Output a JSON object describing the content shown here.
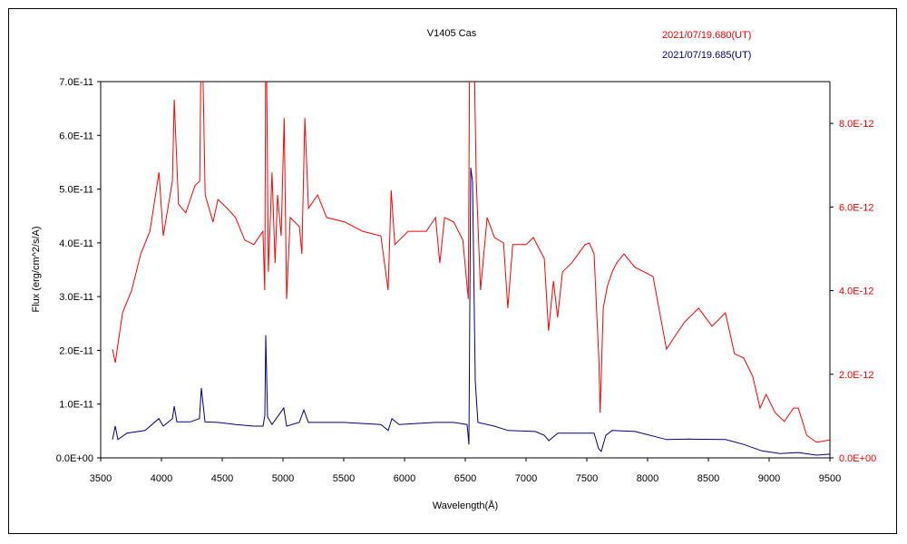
{
  "chart_data": {
    "type": "line",
    "title": "V1405 Cas",
    "xlabel": "Wavelength(Å)",
    "ylabel": "Flux (erg/cm^2/s/A)",
    "xlim": [
      3500,
      9500
    ],
    "ylim_left": [
      0,
      7e-11
    ],
    "ylim_right": [
      0,
      9e-12
    ],
    "x_ticks": [
      "3500",
      "4000",
      "4500",
      "5000",
      "5500",
      "6000",
      "6500",
      "7000",
      "7500",
      "8000",
      "8500",
      "9000",
      "9500"
    ],
    "x_tick_values": [
      3500,
      4000,
      4500,
      5000,
      5500,
      6000,
      6500,
      7000,
      7500,
      8000,
      8500,
      9000,
      9500
    ],
    "y_left_ticks": [
      "0.0E+00",
      "1.0E-11",
      "2.0E-11",
      "3.0E-11",
      "4.0E-11",
      "5.0E-11",
      "6.0E-11",
      "7.0E-11"
    ],
    "y_left_tick_values": [
      0,
      1,
      2,
      3,
      4,
      5,
      6,
      7
    ],
    "y_right_ticks": [
      "0.0E+00",
      "2.0E-12",
      "4.0E-12",
      "6.0E-12",
      "8.0E-12"
    ],
    "y_right_tick_values": [
      0,
      2,
      4,
      6,
      8
    ],
    "grid": false,
    "legend_position": "top-right",
    "series": [
      {
        "name": "2021/07/19.680(UT)",
        "color": "#ff0000",
        "axis": "right",
        "unit": "1E-12",
        "x": [
          3597,
          3620,
          3680,
          3755,
          3830,
          3905,
          3980,
          4015,
          4090,
          4105,
          4140,
          4200,
          4275,
          4315,
          4330,
          4360,
          4425,
          4465,
          4540,
          4610,
          4685,
          4760,
          4835,
          4850,
          4860,
          4880,
          4910,
          4935,
          4955,
          4985,
          5010,
          5030,
          5060,
          5135,
          5155,
          5180,
          5210,
          5285,
          5360,
          5510,
          5655,
          5805,
          5865,
          5890,
          5920,
          6030,
          6180,
          6255,
          6290,
          6330,
          6405,
          6480,
          6525,
          6540,
          6560,
          6590,
          6625,
          6680,
          6740,
          6815,
          6850,
          6890,
          7000,
          7060,
          7150,
          7185,
          7225,
          7260,
          7300,
          7375,
          7485,
          7520,
          7560,
          7600,
          7610,
          7635,
          7670,
          7710,
          7745,
          7805,
          7895,
          8045,
          8155,
          8230,
          8305,
          8420,
          8530,
          8640,
          8715,
          8790,
          8865,
          8925,
          8975,
          9050,
          9125,
          9200,
          9240,
          9310,
          9390,
          9500
        ],
        "y": [
          2.6,
          2.28,
          3.47,
          4.01,
          4.88,
          5.42,
          6.83,
          5.31,
          6.62,
          8.57,
          6.07,
          5.86,
          6.51,
          6.62,
          11,
          6.29,
          5.64,
          6.18,
          5.97,
          5.75,
          5.21,
          5.1,
          5.42,
          4.01,
          11,
          4.45,
          6.83,
          4.66,
          6.29,
          5.31,
          8.13,
          3.8,
          5.75,
          5.53,
          4.88,
          8.13,
          5.97,
          6.29,
          5.75,
          5.64,
          5.42,
          5.31,
          4.01,
          6.4,
          5.1,
          5.42,
          5.42,
          5.75,
          4.66,
          5.75,
          5.64,
          5.21,
          3.8,
          12,
          12,
          6.62,
          4.01,
          5.75,
          5.27,
          5.14,
          3.58,
          5.1,
          5.1,
          5.27,
          4.77,
          3.04,
          4.23,
          3.36,
          4.45,
          4.66,
          5.1,
          5.14,
          4.88,
          2.28,
          1.08,
          3.58,
          4.12,
          4.45,
          4.66,
          4.88,
          4.56,
          4.34,
          2.6,
          2.93,
          3.25,
          3.58,
          3.15,
          3.47,
          2.49,
          2.39,
          1.95,
          1.19,
          1.52,
          1.08,
          0.87,
          1.19,
          1.19,
          0.54,
          0.37,
          0.43
        ]
      },
      {
        "name": "2021/07/19.685(UT)",
        "color": "#000080",
        "axis": "left",
        "unit": "1E-11",
        "x": [
          3597,
          3620,
          3642,
          3716,
          3866,
          3978,
          4015,
          4090,
          4105,
          4127,
          4239,
          4313,
          4328,
          4358,
          4463,
          4612,
          4761,
          4836,
          4851,
          4858,
          4873,
          4910,
          5007,
          5030,
          5134,
          5172,
          5209,
          5507,
          5806,
          5866,
          5896,
          5955,
          6254,
          6403,
          6515,
          6530,
          6545,
          6560,
          6582,
          6604,
          6739,
          6851,
          7075,
          7149,
          7187,
          7261,
          7560,
          7597,
          7619,
          7657,
          7709,
          7896,
          8157,
          8343,
          8642,
          8791,
          8940,
          9090,
          9239,
          9388,
          9500
        ],
        "y": [
          0.34,
          0.59,
          0.34,
          0.46,
          0.51,
          0.73,
          0.59,
          0.73,
          0.96,
          0.67,
          0.67,
          0.73,
          1.3,
          0.67,
          0.66,
          0.62,
          0.59,
          0.59,
          0.79,
          2.28,
          0.76,
          0.62,
          0.93,
          0.59,
          0.66,
          0.89,
          0.66,
          0.66,
          0.62,
          0.51,
          0.73,
          0.62,
          0.66,
          0.66,
          0.62,
          0.25,
          5.4,
          5.14,
          1.43,
          0.66,
          0.59,
          0.51,
          0.49,
          0.42,
          0.32,
          0.46,
          0.46,
          0.17,
          0.12,
          0.42,
          0.51,
          0.49,
          0.34,
          0.35,
          0.34,
          0.25,
          0.13,
          0.08,
          0.1,
          0.05,
          0.07
        ]
      }
    ]
  }
}
